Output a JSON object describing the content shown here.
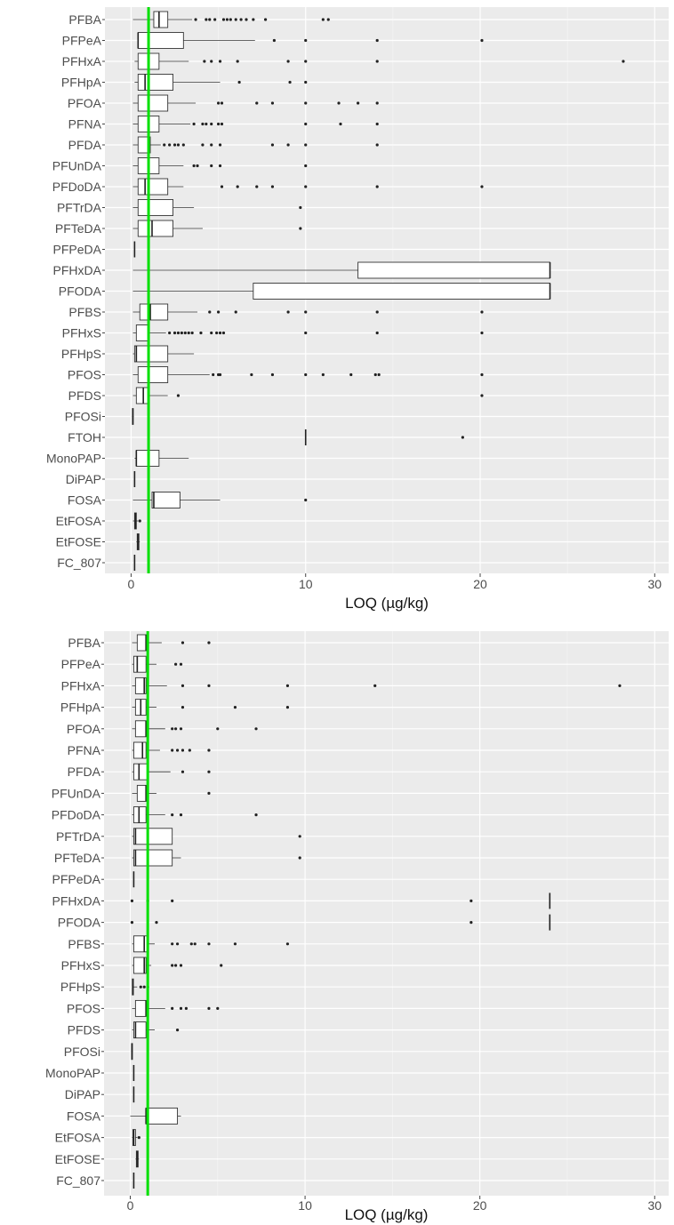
{
  "chart_data": [
    {
      "type": "boxplot",
      "orientation": "horizontal",
      "xlabel": "LOQ (µg/kg)",
      "xlim": [
        -1.5,
        30.8
      ],
      "xticks": [
        0,
        10,
        20,
        30
      ],
      "reference_line": {
        "x": 1,
        "color": "#00e000"
      },
      "grid": true,
      "categories": [
        "PFBA",
        "PFPeA",
        "PFHxA",
        "PFHpA",
        "PFOA",
        "PFNA",
        "PFDA",
        "PFUnDA",
        "PFDoDA",
        "PFTrDA",
        "PFTeDA",
        "PFPeDA",
        "PFHxDA",
        "PFODA",
        "PFBS",
        "PFHxS",
        "PFHpS",
        "PFOS",
        "PFDS",
        "PFOSi",
        "FTOH",
        "MonoPAP",
        "DiPAP",
        "FOSA",
        "EtFOSA",
        "EtFOSE",
        "FC_807"
      ],
      "boxes": [
        {
          "min": 0.1,
          "q1": 1.3,
          "median": 1.6,
          "q3": 2.1,
          "max": 3.5,
          "outliers": [
            3.7,
            4.3,
            4.5,
            4.8,
            5.3,
            5.5,
            5.7,
            6.0,
            6.3,
            6.6,
            7.0,
            7.7,
            11.0,
            11.3
          ]
        },
        {
          "min": 0.4,
          "q1": 0.4,
          "median": 0.4,
          "q3": 3.0,
          "max": 7.1,
          "outliers": [
            8.2,
            10.0,
            14.1,
            20.1
          ]
        },
        {
          "min": 0.2,
          "q1": 0.4,
          "median": 1.0,
          "q3": 1.6,
          "max": 3.3,
          "outliers": [
            4.2,
            4.6,
            5.1,
            6.1,
            9.0,
            10.0,
            14.1,
            28.2
          ]
        },
        {
          "min": 0.2,
          "q1": 0.4,
          "median": 0.8,
          "q3": 2.4,
          "max": 5.1,
          "outliers": [
            6.2,
            9.1,
            10.0
          ]
        },
        {
          "min": 0.1,
          "q1": 0.4,
          "median": 1.0,
          "q3": 2.1,
          "max": 3.7,
          "outliers": [
            5.0,
            5.2,
            7.2,
            8.1,
            10.0,
            11.9,
            13.0,
            14.1
          ]
        },
        {
          "min": 0.1,
          "q1": 0.4,
          "median": 1.0,
          "q3": 1.6,
          "max": 3.4,
          "outliers": [
            3.6,
            4.1,
            4.3,
            4.6,
            5.0,
            5.2,
            10.0,
            12.0,
            14.1
          ]
        },
        {
          "min": 0.1,
          "q1": 0.4,
          "median": 1.0,
          "q3": 1.1,
          "max": 1.7,
          "outliers": [
            1.9,
            2.2,
            2.5,
            2.7,
            3.0,
            4.1,
            4.6,
            5.1,
            8.1,
            9.0,
            10.0,
            14.1
          ]
        },
        {
          "min": 0.1,
          "q1": 0.4,
          "median": 1.0,
          "q3": 1.6,
          "max": 3.0,
          "outliers": [
            3.6,
            3.8,
            4.6,
            5.1,
            10.0
          ]
        },
        {
          "min": 0.1,
          "q1": 0.4,
          "median": 0.8,
          "q3": 2.1,
          "max": 3.0,
          "outliers": [
            5.2,
            6.1,
            7.2,
            8.1,
            10.0,
            14.1,
            20.1
          ]
        },
        {
          "min": 0.1,
          "q1": 0.4,
          "median": 1.0,
          "q3": 2.4,
          "max": 3.6,
          "outliers": [
            9.7
          ]
        },
        {
          "min": 0.1,
          "q1": 0.4,
          "median": 1.2,
          "q3": 2.4,
          "max": 4.1,
          "outliers": [
            9.7
          ]
        },
        {
          "min": 0.2,
          "q1": 0.2,
          "median": 0.2,
          "q3": 0.2,
          "max": 0.2,
          "outliers": []
        },
        {
          "min": 0.1,
          "q1": 13.0,
          "median": 24.0,
          "q3": 24.0,
          "max": 24.0,
          "outliers": []
        },
        {
          "min": 0.1,
          "q1": 7.0,
          "median": 24.0,
          "q3": 24.0,
          "max": 24.0,
          "outliers": []
        },
        {
          "min": 0.1,
          "q1": 0.5,
          "median": 1.1,
          "q3": 2.1,
          "max": 3.8,
          "outliers": [
            4.5,
            5.0,
            6.0,
            9.0,
            10.0,
            14.1,
            20.1
          ]
        },
        {
          "min": 0.1,
          "q1": 0.3,
          "median": 1.0,
          "q3": 1.0,
          "max": 2.0,
          "outliers": [
            2.2,
            2.5,
            2.7,
            2.9,
            3.1,
            3.3,
            3.5,
            4.0,
            4.6,
            4.9,
            5.1,
            5.3,
            10.0,
            14.1,
            20.1
          ]
        },
        {
          "min": 0.1,
          "q1": 0.2,
          "median": 0.3,
          "q3": 2.1,
          "max": 3.6,
          "outliers": []
        },
        {
          "min": 0.1,
          "q1": 0.4,
          "median": 1.0,
          "q3": 2.1,
          "max": 4.5,
          "outliers": [
            4.7,
            5.0,
            5.1,
            6.9,
            8.1,
            10.0,
            11.0,
            12.6,
            14.0,
            14.2,
            20.1
          ]
        },
        {
          "min": 0.1,
          "q1": 0.3,
          "median": 0.7,
          "q3": 1.0,
          "max": 2.1,
          "outliers": [
            2.7,
            20.1
          ]
        },
        {
          "min": 0.05,
          "q1": 0.08,
          "median": 0.1,
          "q3": 0.12,
          "max": 0.15,
          "outliers": []
        },
        {
          "min": 10.0,
          "q1": 10.0,
          "median": 10.0,
          "q3": 10.0,
          "max": 10.0,
          "outliers": [
            19.0
          ]
        },
        {
          "min": 0.2,
          "q1": 0.3,
          "median": 0.3,
          "q3": 1.6,
          "max": 3.3,
          "outliers": []
        },
        {
          "min": 0.2,
          "q1": 0.2,
          "median": 0.2,
          "q3": 0.2,
          "max": 0.2,
          "outliers": []
        },
        {
          "min": 0.1,
          "q1": 1.2,
          "median": 1.3,
          "q3": 2.8,
          "max": 5.1,
          "outliers": [
            10.0
          ]
        },
        {
          "min": 0.1,
          "q1": 0.2,
          "median": 0.25,
          "q3": 0.3,
          "max": 0.4,
          "outliers": [
            0.5
          ]
        },
        {
          "min": 0.3,
          "q1": 0.35,
          "median": 0.4,
          "q3": 0.45,
          "max": 0.5,
          "outliers": []
        },
        {
          "min": 0.2,
          "q1": 0.2,
          "median": 0.2,
          "q3": 0.2,
          "max": 0.2,
          "outliers": []
        }
      ]
    },
    {
      "type": "boxplot",
      "orientation": "horizontal",
      "xlabel": "LOQ (µg/kg)",
      "xlim": [
        -1.5,
        30.8
      ],
      "xticks": [
        0,
        10,
        20,
        30
      ],
      "reference_line": {
        "x": 1,
        "color": "#00e000"
      },
      "grid": true,
      "categories": [
        "PFBA",
        "PFPeA",
        "PFHxA",
        "PFHpA",
        "PFOA",
        "PFNA",
        "PFDA",
        "PFUnDA",
        "PFDoDA",
        "PFTrDA",
        "PFTeDA",
        "PFPeDA",
        "PFHxDA",
        "PFODA",
        "PFBS",
        "PFHxS",
        "PFHpS",
        "PFOS",
        "PFDS",
        "PFOSi",
        "MonoPAP",
        "DiPAP",
        "FOSA",
        "EtFOSA",
        "EtFOSE",
        "FC_807"
      ],
      "boxes": [
        {
          "min": 0.1,
          "q1": 0.4,
          "median": 0.9,
          "q3": 1.0,
          "max": 1.8,
          "outliers": [
            3.0,
            4.5
          ]
        },
        {
          "min": 0.1,
          "q1": 0.2,
          "median": 0.4,
          "q3": 0.9,
          "max": 1.5,
          "outliers": [
            2.6,
            2.9
          ]
        },
        {
          "min": 0.1,
          "q1": 0.3,
          "median": 0.8,
          "q3": 0.9,
          "max": 2.1,
          "outliers": [
            3.0,
            4.5,
            9.0,
            14.0,
            28.0
          ]
        },
        {
          "min": 0.1,
          "q1": 0.3,
          "median": 0.6,
          "q3": 0.9,
          "max": 1.5,
          "outliers": [
            3.0,
            6.0,
            9.0
          ]
        },
        {
          "min": 0.1,
          "q1": 0.3,
          "median": 0.9,
          "q3": 0.9,
          "max": 2.0,
          "outliers": [
            2.4,
            2.6,
            2.9,
            5.0,
            7.2
          ]
        },
        {
          "min": 0.1,
          "q1": 0.2,
          "median": 0.7,
          "q3": 0.9,
          "max": 1.7,
          "outliers": [
            2.4,
            2.7,
            3.0,
            3.4,
            4.5
          ]
        },
        {
          "min": 0.1,
          "q1": 0.2,
          "median": 0.5,
          "q3": 1.0,
          "max": 2.3,
          "outliers": [
            3.0,
            4.5
          ]
        },
        {
          "min": 0.1,
          "q1": 0.4,
          "median": 0.9,
          "q3": 1.0,
          "max": 1.5,
          "outliers": [
            4.5
          ]
        },
        {
          "min": 0.1,
          "q1": 0.2,
          "median": 0.5,
          "q3": 0.9,
          "max": 2.0,
          "outliers": [
            2.4,
            2.9,
            7.2
          ]
        },
        {
          "min": 0.1,
          "q1": 0.2,
          "median": 0.3,
          "q3": 2.4,
          "max": 2.4,
          "outliers": [
            9.7
          ]
        },
        {
          "min": 0.1,
          "q1": 0.2,
          "median": 0.3,
          "q3": 2.4,
          "max": 2.9,
          "outliers": [
            9.7
          ]
        },
        {
          "min": 0.2,
          "q1": 0.2,
          "median": 0.2,
          "q3": 0.2,
          "max": 0.2,
          "outliers": []
        },
        {
          "min": 24.0,
          "q1": 24.0,
          "median": 24.0,
          "q3": 24.0,
          "max": 24.0,
          "outliers": [
            0.1,
            1.0,
            2.4,
            19.5
          ]
        },
        {
          "min": 24.0,
          "q1": 24.0,
          "median": 24.0,
          "q3": 24.0,
          "max": 24.0,
          "outliers": [
            0.1,
            1.5,
            19.5
          ]
        },
        {
          "min": 0.1,
          "q1": 0.2,
          "median": 0.8,
          "q3": 1.0,
          "max": 1.4,
          "outliers": [
            2.4,
            2.7,
            3.5,
            3.7,
            4.5,
            6.0,
            9.0
          ]
        },
        {
          "min": 0.1,
          "q1": 0.2,
          "median": 0.8,
          "q3": 0.9,
          "max": 1.2,
          "outliers": [
            2.4,
            2.6,
            2.9,
            5.2
          ]
        },
        {
          "min": 0.1,
          "q1": 0.12,
          "median": 0.15,
          "q3": 0.18,
          "max": 0.4,
          "outliers": [
            0.6,
            0.8,
            1.0
          ]
        },
        {
          "min": 0.1,
          "q1": 0.3,
          "median": 0.9,
          "q3": 0.9,
          "max": 2.0,
          "outliers": [
            2.4,
            2.9,
            3.2,
            4.5,
            5.0
          ]
        },
        {
          "min": 0.1,
          "q1": 0.2,
          "median": 0.3,
          "q3": 0.9,
          "max": 1.4,
          "outliers": [
            2.7
          ]
        },
        {
          "min": 0.05,
          "q1": 0.08,
          "median": 0.1,
          "q3": 0.12,
          "max": 0.15,
          "outliers": []
        },
        {
          "min": 0.2,
          "q1": 0.2,
          "median": 0.2,
          "q3": 0.2,
          "max": 0.2,
          "outliers": []
        },
        {
          "min": 0.2,
          "q1": 0.2,
          "median": 0.2,
          "q3": 0.2,
          "max": 0.2,
          "outliers": []
        },
        {
          "min": 0.0,
          "q1": 0.9,
          "median": 0.9,
          "q3": 2.7,
          "max": 2.9,
          "outliers": []
        },
        {
          "min": 0.1,
          "q1": 0.15,
          "median": 0.2,
          "q3": 0.3,
          "max": 0.4,
          "outliers": [
            0.5
          ]
        },
        {
          "min": 0.3,
          "q1": 0.35,
          "median": 0.4,
          "q3": 0.45,
          "max": 0.5,
          "outliers": []
        },
        {
          "min": 0.2,
          "q1": 0.2,
          "median": 0.2,
          "q3": 0.2,
          "max": 0.2,
          "outliers": []
        }
      ]
    }
  ]
}
